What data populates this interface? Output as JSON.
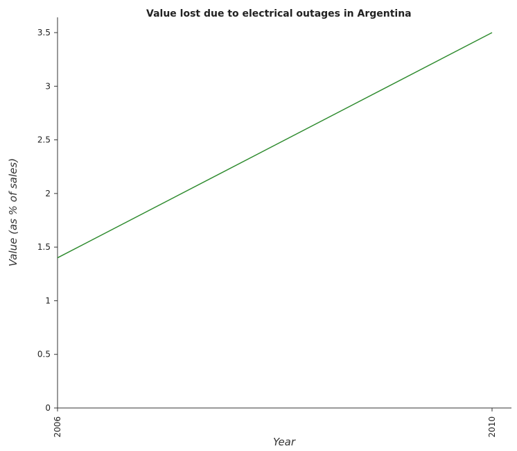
{
  "chart_data": {
    "type": "line",
    "title": "Value lost due to electrical outages in Argentina",
    "xlabel": "Year",
    "ylabel": "Value (as % of sales)",
    "categories": [
      "2006",
      "2010"
    ],
    "series": [
      {
        "values": [
          1.4,
          3.5
        ],
        "color": "#2e8b2e"
      }
    ],
    "ylim": [
      0,
      3.5
    ],
    "yticks": [
      "0",
      "0.5",
      "1",
      "1.5",
      "2",
      "2.5",
      "3",
      "3.5"
    ],
    "grid": false,
    "legend": "none"
  }
}
